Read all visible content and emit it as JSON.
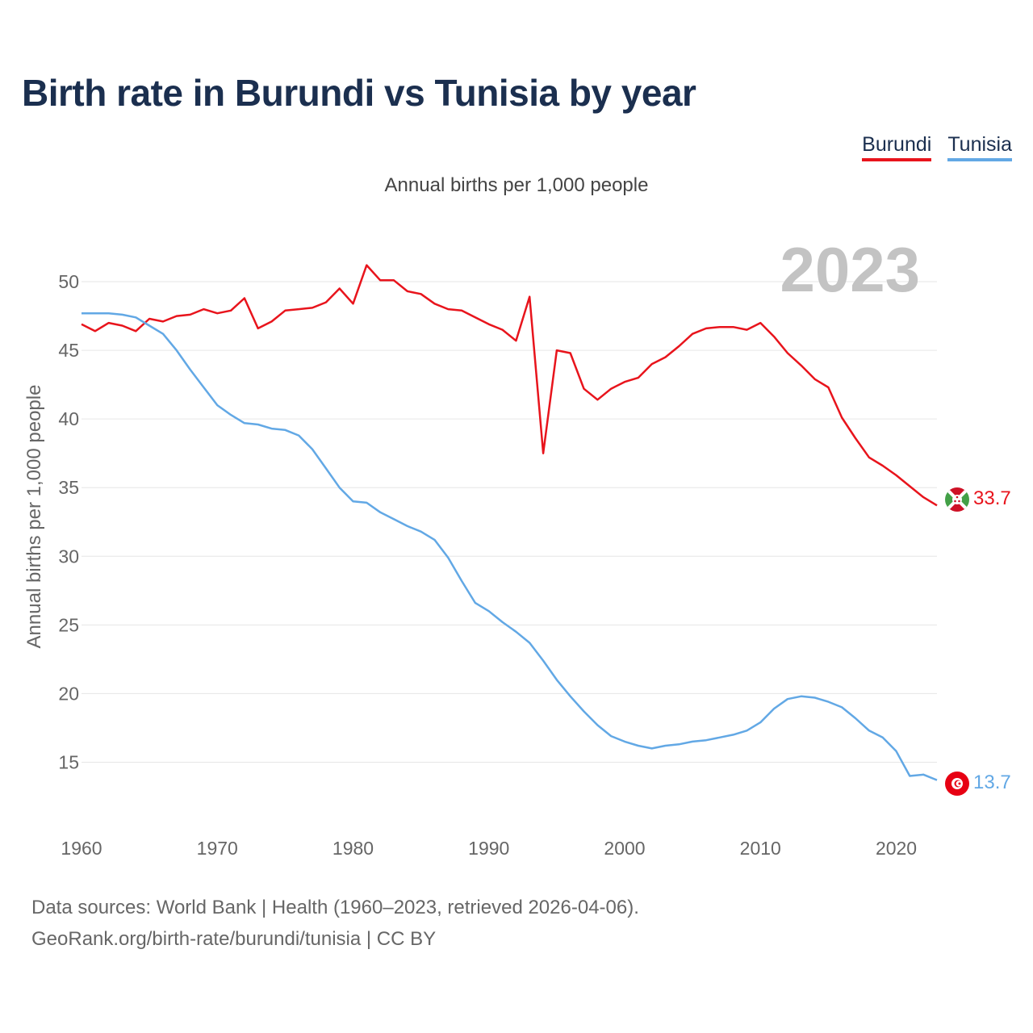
{
  "header": {
    "title": "Birth rate in Burundi vs Tunisia by year"
  },
  "legend": {
    "items": [
      "Burundi",
      "Tunisia"
    ]
  },
  "footer": {
    "line1": "Data sources: World Bank | Health (1960–2023, retrieved 2026-04-06).",
    "line2": "GeoRank.org/birth-rate/burundi/tunisia | CC BY"
  },
  "chart_data": {
    "type": "line",
    "title": "Birth rate in Burundi vs Tunisia by year",
    "subtitle": "Annual births per 1,000 people",
    "ylabel": "Annual births per 1,000 people",
    "xlabel": "",
    "year_label": "2023",
    "x": [
      1960,
      1961,
      1962,
      1963,
      1964,
      1965,
      1966,
      1967,
      1968,
      1969,
      1970,
      1971,
      1972,
      1973,
      1974,
      1975,
      1976,
      1977,
      1978,
      1979,
      1980,
      1981,
      1982,
      1983,
      1984,
      1985,
      1986,
      1987,
      1988,
      1989,
      1990,
      1991,
      1992,
      1993,
      1994,
      1995,
      1996,
      1997,
      1998,
      1999,
      2000,
      2001,
      2002,
      2003,
      2004,
      2005,
      2006,
      2007,
      2008,
      2009,
      2010,
      2011,
      2012,
      2013,
      2014,
      2015,
      2016,
      2017,
      2018,
      2019,
      2020,
      2021,
      2022,
      2023
    ],
    "xlim": [
      1960,
      2023
    ],
    "ylim": [
      11.5,
      53
    ],
    "xticks": [
      1960,
      1970,
      1980,
      1990,
      2000,
      2010,
      2020
    ],
    "yticks": [
      15,
      20,
      25,
      30,
      35,
      40,
      45,
      50
    ],
    "grid": true,
    "legend_position": "top-right",
    "series": [
      {
        "name": "Burundi",
        "color": "#e8141c",
        "end_label": "33.7",
        "flag": "burundi",
        "values": [
          46.9,
          46.4,
          47.0,
          46.8,
          46.4,
          47.3,
          47.1,
          47.5,
          47.6,
          48.0,
          47.7,
          47.9,
          48.8,
          46.6,
          47.1,
          47.9,
          48.0,
          48.1,
          48.5,
          49.5,
          48.4,
          51.2,
          50.1,
          50.1,
          49.3,
          49.1,
          48.4,
          48.0,
          47.9,
          47.4,
          46.9,
          46.5,
          45.7,
          48.9,
          37.5,
          45.0,
          44.8,
          42.2,
          41.4,
          42.2,
          42.7,
          43.0,
          44.0,
          44.5,
          45.3,
          46.2,
          46.6,
          46.7,
          46.7,
          46.5,
          47.0,
          46.0,
          44.8,
          43.9,
          42.9,
          42.3,
          40.1,
          38.6,
          37.2,
          36.6,
          35.9,
          35.1,
          34.3,
          33.7
        ]
      },
      {
        "name": "Tunisia",
        "color": "#62a8e5",
        "end_label": "13.7",
        "flag": "tunisia",
        "values": [
          47.7,
          47.7,
          47.7,
          47.6,
          47.4,
          46.8,
          46.2,
          45.0,
          43.6,
          42.3,
          41.0,
          40.3,
          39.7,
          39.6,
          39.3,
          39.2,
          38.8,
          37.8,
          36.4,
          35.0,
          34.0,
          33.9,
          33.2,
          32.7,
          32.2,
          31.8,
          31.2,
          29.9,
          28.2,
          26.6,
          26.0,
          25.2,
          24.5,
          23.7,
          22.4,
          21.0,
          19.8,
          18.7,
          17.7,
          16.9,
          16.5,
          16.2,
          16.0,
          16.2,
          16.3,
          16.5,
          16.6,
          16.8,
          17.0,
          17.3,
          17.9,
          18.9,
          19.6,
          19.8,
          19.7,
          19.4,
          19.0,
          18.2,
          17.3,
          16.8,
          15.8,
          14.0,
          14.1,
          13.7
        ]
      }
    ]
  }
}
